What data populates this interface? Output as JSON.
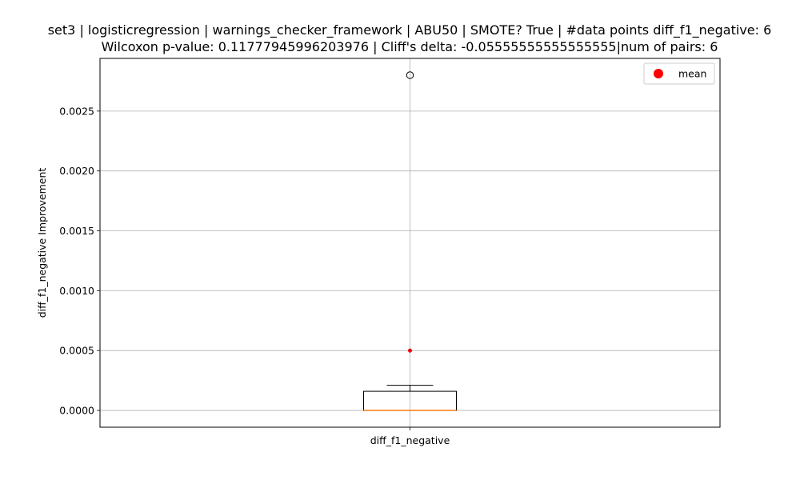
{
  "chart_data": {
    "type": "box",
    "title_line1": "set3 | logisticregression | warnings_checker_framework | ABU50 | SMOTE? True | #data points diff_f1_negative: 6",
    "title_line2": "Wilcoxon p-value: 0.11777945996203976 | Cliff's delta: -0.05555555555555555|num of pairs: 6",
    "xlabel": "",
    "ylabel": "diff_f1_negative Improvement",
    "categories": [
      "diff_f1_negative"
    ],
    "ylim": [
      -0.00014,
      0.00294
    ],
    "yticks": [
      "0.0000",
      "0.0005",
      "0.0010",
      "0.0015",
      "0.0020",
      "0.0025"
    ],
    "ytick_values": [
      0,
      0.0005,
      0.001,
      0.0015,
      0.002,
      0.0025
    ],
    "grid": true,
    "box": {
      "q1": 0.0,
      "median": 0.0,
      "q3": 0.00016,
      "whisker_low": 0.0,
      "whisker_high": 0.00021,
      "outliers": [
        0.0028
      ],
      "mean": 0.0005
    },
    "legend": {
      "label": "mean",
      "location": "upper-right"
    },
    "colors": {
      "median": "#ff7f0e",
      "mean": "#ff0000",
      "grid": "#b0b0b0"
    }
  }
}
